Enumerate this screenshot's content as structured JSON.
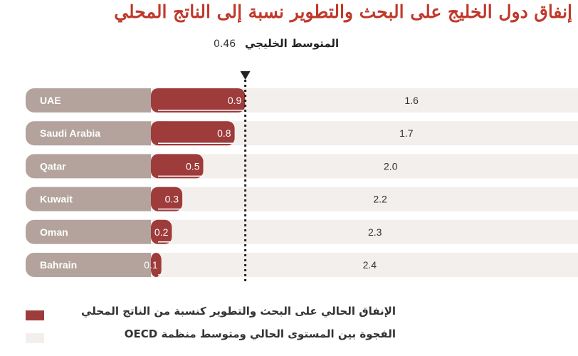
{
  "title": "إنفاق دول الخليج على البحث والتطوير نسبة إلى الناتج المحلي",
  "average": {
    "label": "المتوسط الخليجي",
    "value": 0.46
  },
  "legend": {
    "current": "الإنفاق الحالي على البحث والتطوير كنسبة من الناتج المحلي",
    "gap": "الفجوة بين المستوى الحالي ومتوسط منظمة OECD"
  },
  "colors": {
    "current": "#9e3b3b",
    "gap": "#f3efec",
    "country_bg": "#b3a39c",
    "marker": "#222222"
  },
  "chart_data": {
    "type": "bar",
    "categories": [
      "UAE",
      "Saudi Arabia",
      "Qatar",
      "Kuwait",
      "Oman",
      "Bahrain"
    ],
    "series": [
      {
        "name": "الإنفاق الحالي على البحث والتطوير كنسبة من الناتج المحلي",
        "values": [
          0.9,
          0.8,
          0.5,
          0.3,
          0.2,
          0.1
        ]
      },
      {
        "name": "الفجوة بين المستوى الحالي ومتوسط منظمة OECD",
        "values": [
          1.6,
          1.7,
          2.0,
          2.2,
          2.3,
          2.4
        ]
      }
    ],
    "value_labels_current": [
      "0.9",
      "0.8",
      "0.5",
      "0.3",
      "0.2",
      "0.1"
    ],
    "value_labels_gap": [
      "1.6",
      "1.7",
      "2.0",
      "2.2",
      "2.3",
      "2.4"
    ],
    "reference_line": 0.46,
    "stacked": true
  }
}
